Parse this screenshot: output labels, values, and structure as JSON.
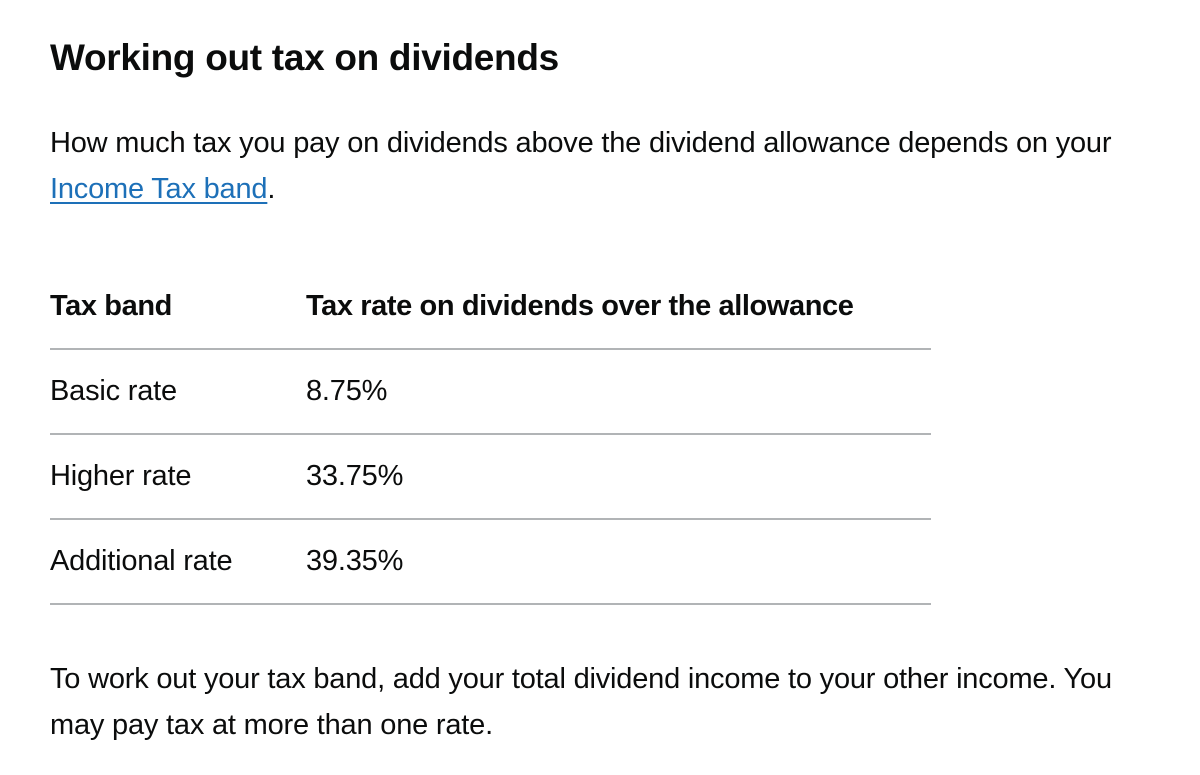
{
  "heading": "Working out tax on dividends",
  "intro": {
    "text_before": "How much tax you pay on dividends above the dividend allowance depends on your ",
    "link_text": "Income Tax band",
    "text_after": "."
  },
  "table": {
    "headers": [
      "Tax band",
      "Tax rate on dividends over the allowance"
    ],
    "rows": [
      {
        "band": "Basic rate",
        "rate": "8.75%"
      },
      {
        "band": "Higher rate",
        "rate": "33.75%"
      },
      {
        "band": "Additional rate",
        "rate": "39.35%"
      }
    ]
  },
  "outro": "To work out your tax band, add your total dividend income to your other income. You may pay tax at more than one rate.",
  "colors": {
    "text": "#0b0c0c",
    "link": "#1d70b8",
    "table_border": "#b1b4b6"
  }
}
